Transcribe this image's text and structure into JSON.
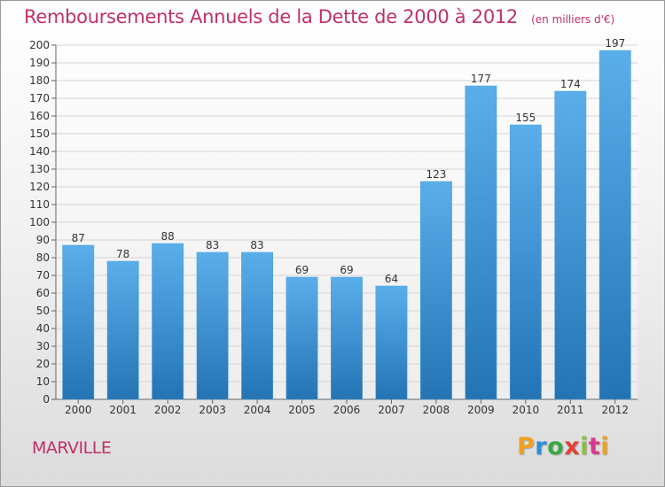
{
  "page": {
    "city": "MARVILLE",
    "brand": "Proxiti"
  },
  "chart_data": {
    "type": "bar",
    "title": "Remboursements Annuels de la Dette de 2000 à 2012",
    "subtitle": "(en milliers d'€)",
    "xlabel": "",
    "ylabel": "",
    "ylim": [
      0,
      200
    ],
    "ytick_step": 10,
    "grid": true,
    "categories": [
      "2000",
      "2001",
      "2002",
      "2003",
      "2004",
      "2005",
      "2006",
      "2007",
      "2008",
      "2009",
      "2010",
      "2011",
      "2012"
    ],
    "values": [
      87,
      78,
      88,
      83,
      83,
      69,
      69,
      64,
      123,
      177,
      155,
      174,
      197
    ],
    "colors": {
      "bar_top": "#5aaeea",
      "bar_bottom": "#2474b4",
      "label": "#c0306a",
      "grid": "#d4d4d4"
    }
  }
}
